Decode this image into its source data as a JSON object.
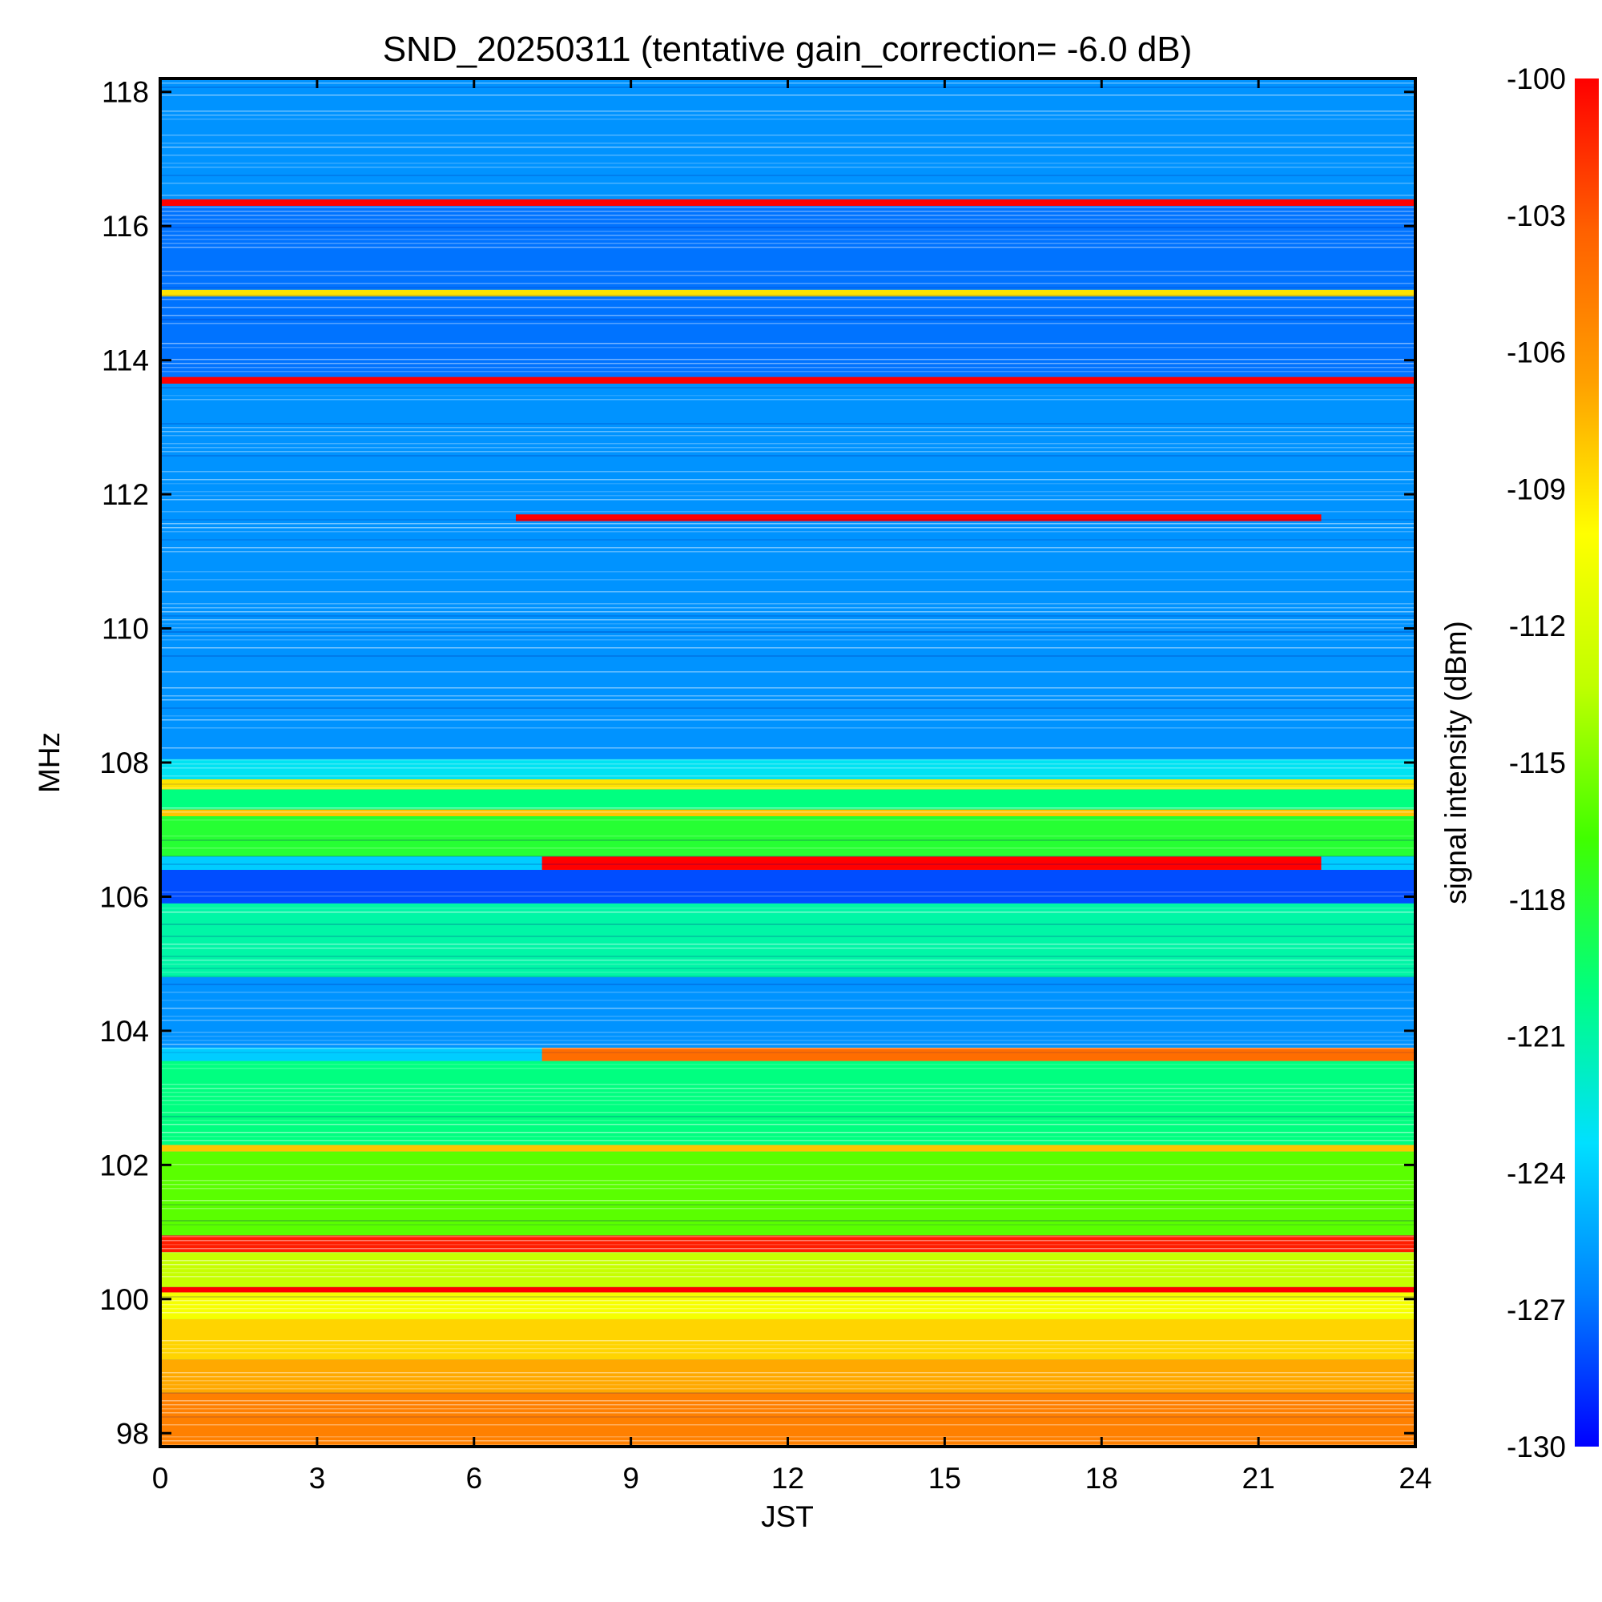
{
  "chart_data": {
    "type": "heatmap",
    "title": "SND_20250311 (tentative gain_correction= -6.0 dB)",
    "xlabel": "JST",
    "ylabel": "MHz",
    "colorbar_label": "signal intensity (dBm)",
    "xlim": [
      0,
      24
    ],
    "ylim": [
      97.8,
      118.2
    ],
    "x_ticks": [
      0,
      3,
      6,
      9,
      12,
      15,
      18,
      21,
      24
    ],
    "x_tick_labels": [
      "0",
      "3",
      "6",
      "9",
      "12",
      "15",
      "18",
      "21",
      "24"
    ],
    "y_ticks": [
      98,
      100,
      102,
      104,
      106,
      108,
      110,
      112,
      114,
      116,
      118
    ],
    "y_tick_labels": [
      "98",
      "100",
      "102",
      "104",
      "106",
      "108",
      "110",
      "112",
      "114",
      "116",
      "118"
    ],
    "colorbar_range": [
      -130,
      -100
    ],
    "colorbar_ticks": [
      -100,
      -103,
      -106,
      -109,
      -112,
      -115,
      -118,
      -121,
      -124,
      -127,
      -130
    ],
    "colorbar_tick_labels": [
      "-100",
      "-103",
      "-106",
      "-109",
      "-112",
      "-115",
      "-118",
      "-121",
      "-124",
      "-127",
      "-130"
    ],
    "colormap": [
      "#0000ff",
      "#0080ff",
      "#00e0ff",
      "#00ff80",
      "#40ff00",
      "#c0ff00",
      "#ffff00",
      "#ffa000",
      "#ff6000",
      "#ff0000"
    ],
    "grid": false,
    "bands": [
      {
        "f_start": 97.8,
        "f_end": 98.6,
        "t_start": 0,
        "t_end": 24,
        "dbm": -105
      },
      {
        "f_start": 98.6,
        "f_end": 99.1,
        "t_start": 0,
        "t_end": 24,
        "dbm": -107
      },
      {
        "f_start": 99.1,
        "f_end": 99.7,
        "t_start": 0,
        "t_end": 24,
        "dbm": -108.5
      },
      {
        "f_start": 99.7,
        "f_end": 100.1,
        "t_start": 0,
        "t_end": 24,
        "dbm": -110.5
      },
      {
        "f_start": 100.1,
        "f_end": 100.18,
        "t_start": 0,
        "t_end": 24,
        "dbm": -100
      },
      {
        "f_start": 100.18,
        "f_end": 100.7,
        "t_start": 0,
        "t_end": 24,
        "dbm": -113
      },
      {
        "f_start": 100.7,
        "f_end": 100.95,
        "t_start": 0,
        "t_end": 24,
        "dbm": -101
      },
      {
        "f_start": 100.95,
        "f_end": 102.2,
        "t_start": 0,
        "t_end": 24,
        "dbm": -116
      },
      {
        "f_start": 102.2,
        "f_end": 102.3,
        "t_start": 0,
        "t_end": 24,
        "dbm": -108
      },
      {
        "f_start": 102.3,
        "f_end": 103.55,
        "t_start": 0,
        "t_end": 24,
        "dbm": -120
      },
      {
        "f_start": 103.55,
        "f_end": 103.75,
        "t_start": 7.3,
        "t_end": 24,
        "dbm": -104
      },
      {
        "f_start": 103.75,
        "f_end": 104.8,
        "t_start": 0,
        "t_end": 24,
        "dbm": -126
      },
      {
        "f_start": 104.8,
        "f_end": 105.9,
        "t_start": 0,
        "t_end": 24,
        "dbm": -121
      },
      {
        "f_start": 105.9,
        "f_end": 106.4,
        "t_start": 0,
        "t_end": 24,
        "dbm": -128
      },
      {
        "f_start": 106.4,
        "f_end": 106.6,
        "t_start": 7.3,
        "t_end": 22.2,
        "dbm": -100
      },
      {
        "f_start": 106.6,
        "f_end": 107.2,
        "t_start": 0,
        "t_end": 24,
        "dbm": -118
      },
      {
        "f_start": 107.2,
        "f_end": 107.3,
        "t_start": 0,
        "t_end": 24,
        "dbm": -108
      },
      {
        "f_start": 107.3,
        "f_end": 107.6,
        "t_start": 0,
        "t_end": 24,
        "dbm": -120
      },
      {
        "f_start": 107.6,
        "f_end": 107.75,
        "t_start": 0,
        "t_end": 24,
        "dbm": -109
      },
      {
        "f_start": 107.75,
        "f_end": 108.05,
        "t_start": 0,
        "t_end": 24,
        "dbm": -123
      },
      {
        "f_start": 108.05,
        "f_end": 113.7,
        "t_start": 0,
        "t_end": 24,
        "dbm": -126
      },
      {
        "f_start": 111.6,
        "f_end": 111.7,
        "t_start": 6.8,
        "t_end": 22.2,
        "dbm": -100
      },
      {
        "f_start": 113.65,
        "f_end": 113.75,
        "t_start": 0,
        "t_end": 24,
        "dbm": -100
      },
      {
        "f_start": 113.75,
        "f_end": 114.95,
        "t_start": 0,
        "t_end": 24,
        "dbm": -127
      },
      {
        "f_start": 114.95,
        "f_end": 115.05,
        "t_start": 0,
        "t_end": 24,
        "dbm": -109
      },
      {
        "f_start": 115.05,
        "f_end": 116.3,
        "t_start": 0,
        "t_end": 24,
        "dbm": -127
      },
      {
        "f_start": 116.3,
        "f_end": 116.4,
        "t_start": 0,
        "t_end": 24,
        "dbm": -100
      },
      {
        "f_start": 116.4,
        "f_end": 118.2,
        "t_start": 0,
        "t_end": 24,
        "dbm": -126
      }
    ]
  }
}
